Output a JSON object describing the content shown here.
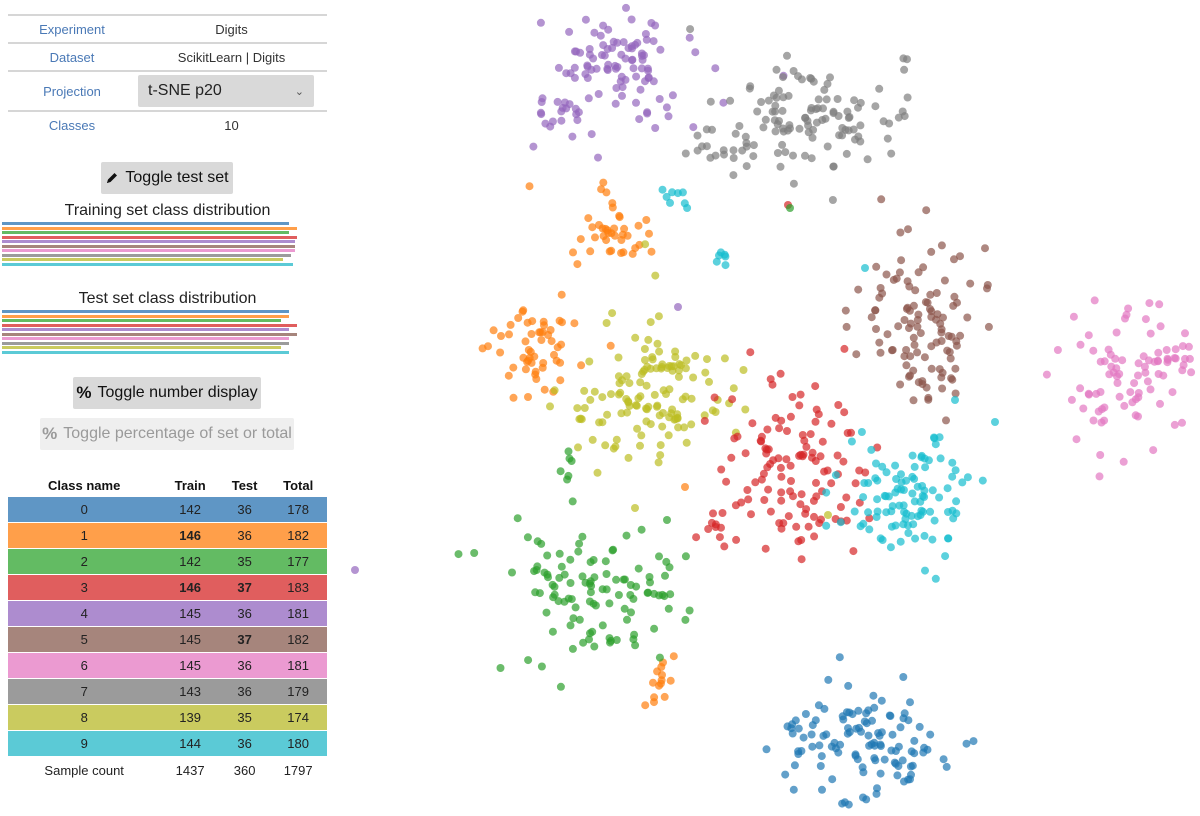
{
  "info": {
    "experiment_label": "Experiment",
    "experiment_value": "Digits",
    "dataset_label": "Dataset",
    "dataset_value": "ScikitLearn | Digits",
    "projection_label": "Projection",
    "projection_value": "t-SNE p20",
    "classes_label": "Classes",
    "classes_value": "10"
  },
  "buttons": {
    "toggle_test": "Toggle test set",
    "toggle_number": "Toggle number display",
    "toggle_percentage": "Toggle percentage of set or total"
  },
  "distribution": {
    "train_title": "Training set class distribution",
    "test_title": "Test set class distribution"
  },
  "table": {
    "headers": [
      "Class name",
      "Train",
      "Test",
      "Total"
    ],
    "rows": [
      {
        "name": "0",
        "train": "142",
        "test": "36",
        "total": "178",
        "color": "#5f96c5",
        "train_bold": false,
        "test_bold": false
      },
      {
        "name": "1",
        "train": "146",
        "test": "36",
        "total": "182",
        "color": "#ff9f4a",
        "train_bold": true,
        "test_bold": false
      },
      {
        "name": "2",
        "train": "142",
        "test": "35",
        "total": "177",
        "color": "#63bb63",
        "train_bold": false,
        "test_bold": false
      },
      {
        "name": "3",
        "train": "146",
        "test": "37",
        "total": "183",
        "color": "#e05e5e",
        "train_bold": true,
        "test_bold": true
      },
      {
        "name": "4",
        "train": "145",
        "test": "36",
        "total": "181",
        "color": "#ad8ccf",
        "train_bold": false,
        "test_bold": false
      },
      {
        "name": "5",
        "train": "145",
        "test": "37",
        "total": "182",
        "color": "#a6857c",
        "train_bold": false,
        "test_bold": true
      },
      {
        "name": "6",
        "train": "145",
        "test": "36",
        "total": "181",
        "color": "#eb9ad1",
        "train_bold": false,
        "test_bold": false
      },
      {
        "name": "7",
        "train": "143",
        "test": "36",
        "total": "179",
        "color": "#9b9b9b",
        "train_bold": false,
        "test_bold": false
      },
      {
        "name": "8",
        "train": "139",
        "test": "35",
        "total": "174",
        "color": "#cacb5f",
        "train_bold": false,
        "test_bold": false
      },
      {
        "name": "9",
        "train": "144",
        "test": "36",
        "total": "180",
        "color": "#5bcad6",
        "train_bold": false,
        "test_bold": false
      }
    ],
    "footer": {
      "label": "Sample count",
      "train": "1437",
      "test": "360",
      "total": "1797"
    }
  },
  "class_colors": [
    "#1f77b4",
    "#ff7f0e",
    "#2ca02c",
    "#d62728",
    "#9467bd",
    "#8c564b",
    "#e377c2",
    "#7f7f7f",
    "#bcbd22",
    "#17becf"
  ],
  "icons": {
    "toggle_test": "pencil-icon",
    "toggle_number": "percent-icon",
    "toggle_percentage": "percent-icon"
  }
}
